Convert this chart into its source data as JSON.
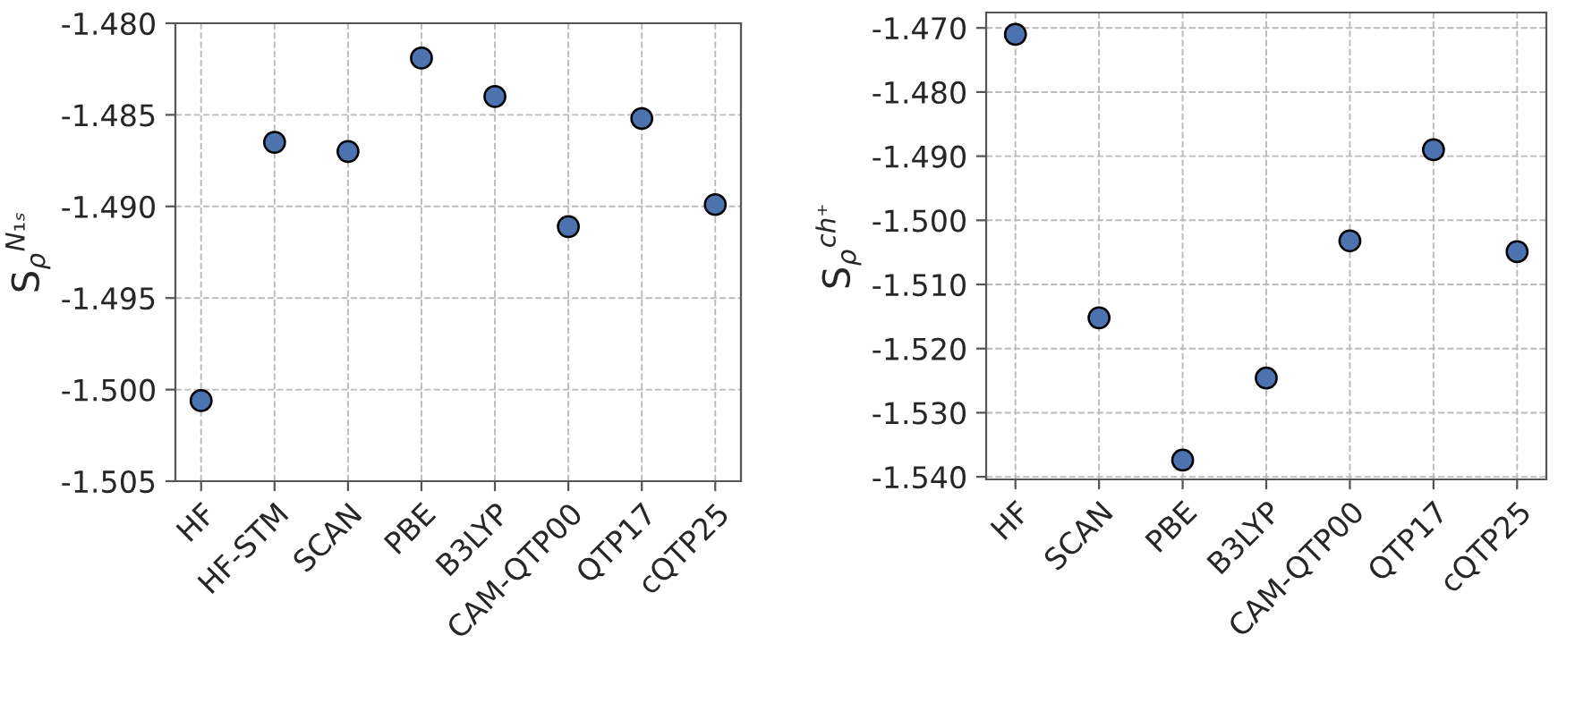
{
  "chart_data": [
    {
      "type": "scatter",
      "ylabel": "S$_{ρ}$$^{N₁ₛ}$",
      "categories": [
        "HF",
        "HF-STM",
        "SCAN",
        "PBE",
        "B3LYP",
        "CAM-QTP00",
        "QTP17",
        "cQTP25"
      ],
      "series": [
        {
          "color": "#4c72b0",
          "values": [
            -1.5006,
            -1.4865,
            -1.487,
            -1.4819,
            -1.484,
            -1.4911,
            -1.4852,
            -1.4899
          ]
        }
      ],
      "ylim": [
        -1.505,
        -1.48
      ],
      "yticks": [
        {
          "value": -1.505,
          "label": "-1.505"
        },
        {
          "value": -1.5,
          "label": "-1.500"
        },
        {
          "value": -1.495,
          "label": "-1.495"
        },
        {
          "value": -1.49,
          "label": "-1.490"
        },
        {
          "value": -1.485,
          "label": "-1.485"
        },
        {
          "value": -1.48,
          "label": "-1.480"
        }
      ],
      "grid": true,
      "marker": "circle"
    },
    {
      "type": "scatter",
      "ylabel": "S$_{ρ}$$^{ch⁺}$",
      "categories": [
        "HF",
        "SCAN",
        "PBE",
        "B3LYP",
        "CAM-QTP00",
        "QTP17",
        "cQTP25"
      ],
      "series": [
        {
          "color": "#4c72b0",
          "values": [
            -1.471,
            -1.5152,
            -1.5374,
            -1.5246,
            -1.5032,
            -1.489,
            -1.5049
          ]
        }
      ],
      "ylim": [
        -1.5404,
        -1.4676
      ],
      "yticks": [
        {
          "value": -1.54,
          "label": "-1.540"
        },
        {
          "value": -1.53,
          "label": "-1.530"
        },
        {
          "value": -1.52,
          "label": "-1.520"
        },
        {
          "value": -1.51,
          "label": "-1.510"
        },
        {
          "value": -1.5,
          "label": "-1.500"
        },
        {
          "value": -1.49,
          "label": "-1.490"
        },
        {
          "value": -1.48,
          "label": "-1.480"
        },
        {
          "value": -1.47,
          "label": "-1.470"
        }
      ],
      "grid": true,
      "marker": "circle"
    }
  ]
}
